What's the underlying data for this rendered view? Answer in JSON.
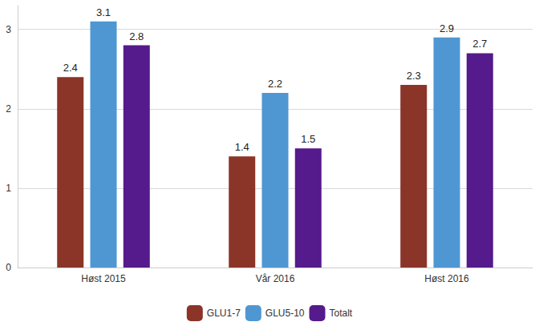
{
  "chart_data": {
    "type": "bar",
    "categories": [
      "Høst 2015",
      "Vår 2016",
      "Høst 2016"
    ],
    "series": [
      {
        "name": "GLU1-7",
        "color": "#8b3428",
        "values": [
          2.4,
          1.4,
          2.3
        ]
      },
      {
        "name": "GLU5-10",
        "color": "#4f97d3",
        "values": [
          3.1,
          2.2,
          2.9
        ]
      },
      {
        "name": "Totalt",
        "color": "#551a8b",
        "values": [
          2.8,
          1.5,
          2.7
        ]
      }
    ],
    "ylim": [
      0,
      3.3
    ],
    "yticks": [
      0,
      1,
      2,
      3
    ],
    "grid": true,
    "legend": "bottom",
    "data_labels": true
  }
}
